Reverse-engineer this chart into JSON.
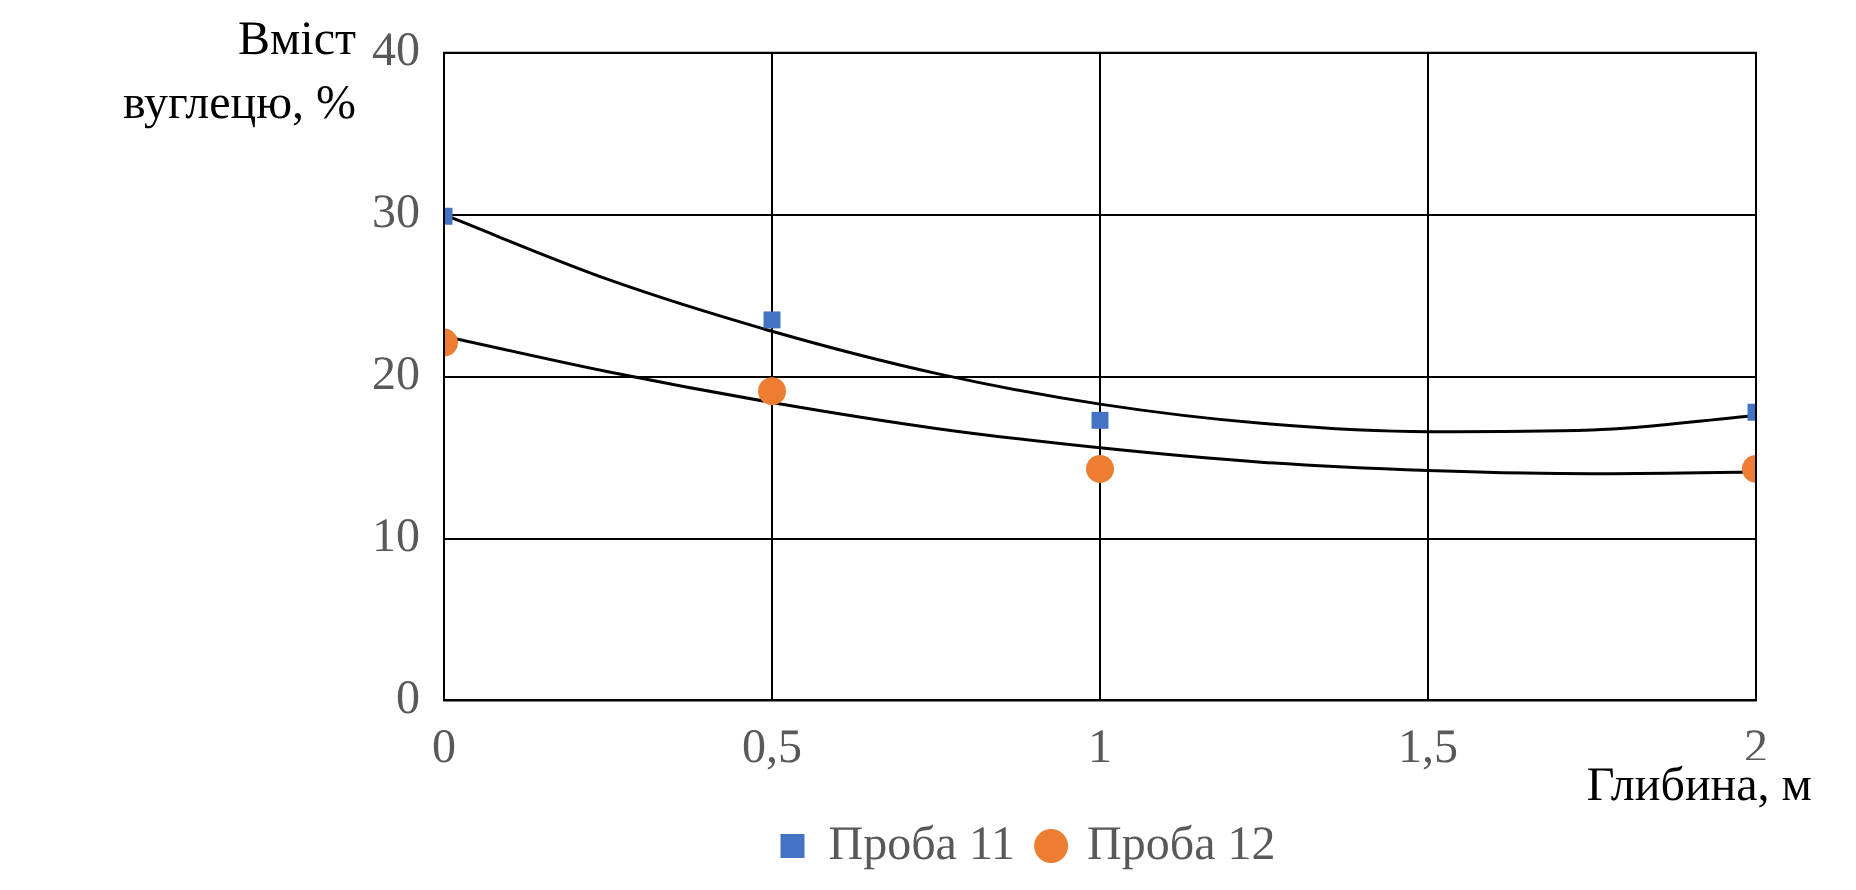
{
  "chart_data": {
    "type": "scatter",
    "xlabel": "Глибина, м",
    "ylabel": "Вміст вуглецю, %",
    "xlim": [
      0,
      2
    ],
    "xticks": [
      0,
      {
        "value": 0.5,
        "label": "0,5"
      },
      1,
      {
        "value": 1.5,
        "label": "1,5"
      },
      2
    ],
    "ylim": [
      0,
      40
    ],
    "yticks": [
      0,
      10,
      20,
      30,
      40
    ],
    "grid": true,
    "legend": "bottom",
    "series": [
      {
        "name": "Проба 11",
        "color": "#4472c4",
        "marker": "square",
        "x": [
          0,
          0.5,
          1,
          2
        ],
        "values": [
          29.9,
          23.5,
          17.3,
          17.8
        ]
      },
      {
        "name": "Проба 12",
        "color": "#ed7d31",
        "marker": "circle",
        "x": [
          0,
          0.5,
          1,
          2
        ],
        "values": [
          22.1,
          19.1,
          14.3,
          14.3
        ]
      },
      {
        "type": "line",
        "color": "#000000",
        "marker": "none",
        "x": [
          0,
          0.25,
          0.5,
          0.75,
          1,
          1.25,
          1.5,
          1.75,
          2
        ],
        "values": [
          30,
          26,
          22.8,
          20.2,
          18.3,
          17.1,
          16.6,
          16.7,
          17.6
        ]
      },
      {
        "type": "line",
        "color": "#000000",
        "marker": "none",
        "x": [
          0,
          0.25,
          0.5,
          0.75,
          1,
          1.25,
          1.5,
          1.75,
          2
        ],
        "values": [
          22.5,
          20.3,
          18.4,
          16.8,
          15.6,
          14.7,
          14.2,
          14,
          14.1
        ]
      }
    ]
  }
}
